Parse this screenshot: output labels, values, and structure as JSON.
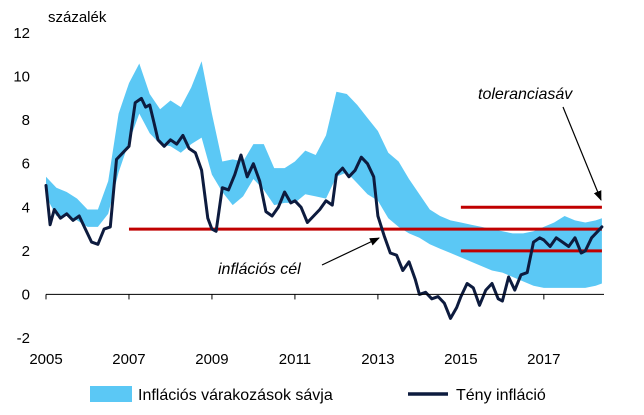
{
  "chart_data": {
    "type": "line",
    "ylabel": "százalék",
    "xlim": [
      2005,
      2018.45
    ],
    "ylim": [
      -2,
      12
    ],
    "x_ticks": [
      2005,
      2007,
      2009,
      2011,
      2013,
      2015,
      2017
    ],
    "x_tick_labels": [
      "2005",
      "2007",
      "2009",
      "2011",
      "2013",
      "2015",
      "2017"
    ],
    "y_ticks": [
      -2,
      0,
      2,
      4,
      6,
      8,
      10,
      12
    ],
    "y_tick_labels": [
      "-2",
      "0",
      "2",
      "4",
      "6",
      "8",
      "10",
      "12"
    ],
    "grid": false,
    "legend_position": "bottom",
    "colors": {
      "band": "#5BC8F5",
      "actual": "#0D1B3E",
      "target": "#C00000",
      "tolerance": "#C00000"
    },
    "series": [
      {
        "name": "Inflációs várakozások sávja",
        "type": "area-band",
        "x": [
          2005.0,
          2005.25,
          2005.5,
          2005.75,
          2006.0,
          2006.25,
          2006.5,
          2006.75,
          2007.0,
          2007.25,
          2007.5,
          2007.75,
          2008.0,
          2008.25,
          2008.5,
          2008.75,
          2009.0,
          2009.25,
          2009.5,
          2009.75,
          2010.0,
          2010.25,
          2010.5,
          2010.75,
          2011.0,
          2011.25,
          2011.5,
          2011.75,
          2012.0,
          2012.25,
          2012.5,
          2012.75,
          2013.0,
          2013.25,
          2013.5,
          2013.75,
          2014.0,
          2014.25,
          2014.5,
          2014.75,
          2015.0,
          2015.25,
          2015.5,
          2015.75,
          2016.0,
          2016.25,
          2016.5,
          2016.75,
          2017.0,
          2017.25,
          2017.5,
          2017.75,
          2018.0,
          2018.25,
          2018.4
        ],
        "lower": [
          4.5,
          3.6,
          3.6,
          3.4,
          3.1,
          3.1,
          3.7,
          5.6,
          7.0,
          8.3,
          7.4,
          6.9,
          6.8,
          6.5,
          6.9,
          7.2,
          5.5,
          4.7,
          4.1,
          4.5,
          5.3,
          4.8,
          4.1,
          4.2,
          4.2,
          4.6,
          4.5,
          4.4,
          5.4,
          5.6,
          5.1,
          4.6,
          4.3,
          3.5,
          3.1,
          2.8,
          2.6,
          2.3,
          2.1,
          1.9,
          1.7,
          1.5,
          1.3,
          1.1,
          1.0,
          0.8,
          0.6,
          0.4,
          0.3,
          0.3,
          0.3,
          0.3,
          0.3,
          0.4,
          0.5
        ],
        "upper": [
          5.4,
          4.9,
          4.7,
          4.4,
          3.9,
          3.9,
          5.2,
          8.3,
          9.7,
          10.6,
          9.2,
          8.5,
          8.9,
          8.6,
          9.5,
          10.7,
          8.3,
          6.1,
          6.2,
          6.1,
          6.9,
          6.9,
          5.8,
          5.8,
          6.1,
          6.6,
          6.4,
          7.3,
          9.3,
          9.2,
          8.7,
          8.1,
          7.5,
          6.5,
          6.1,
          5.3,
          4.6,
          3.9,
          3.6,
          3.4,
          3.3,
          3.2,
          3.1,
          3.0,
          2.9,
          2.8,
          2.8,
          2.9,
          3.1,
          3.3,
          3.6,
          3.4,
          3.3,
          3.4,
          3.5
        ]
      },
      {
        "name": "Tény infláció",
        "type": "line",
        "x": [
          2005.0,
          2005.1,
          2005.2,
          2005.35,
          2005.5,
          2005.65,
          2005.8,
          2005.95,
          2006.1,
          2006.25,
          2006.4,
          2006.55,
          2006.7,
          2006.85,
          2007.0,
          2007.15,
          2007.3,
          2007.4,
          2007.5,
          2007.6,
          2007.7,
          2007.85,
          2008.0,
          2008.15,
          2008.3,
          2008.45,
          2008.6,
          2008.75,
          2008.9,
          2009.0,
          2009.1,
          2009.25,
          2009.4,
          2009.55,
          2009.7,
          2009.85,
          2010.0,
          2010.15,
          2010.3,
          2010.45,
          2010.6,
          2010.75,
          2010.9,
          2011.0,
          2011.15,
          2011.3,
          2011.45,
          2011.6,
          2011.75,
          2011.9,
          2012.0,
          2012.15,
          2012.3,
          2012.45,
          2012.6,
          2012.75,
          2012.9,
          2013.0,
          2013.15,
          2013.3,
          2013.45,
          2013.6,
          2013.75,
          2013.9,
          2014.0,
          2014.15,
          2014.3,
          2014.45,
          2014.6,
          2014.75,
          2014.9,
          2015.0,
          2015.15,
          2015.3,
          2015.45,
          2015.6,
          2015.75,
          2015.9,
          2016.0,
          2016.15,
          2016.3,
          2016.45,
          2016.6,
          2016.75,
          2016.9,
          2017.0,
          2017.15,
          2017.3,
          2017.45,
          2017.6,
          2017.75,
          2017.9,
          2018.0,
          2018.15,
          2018.3,
          2018.4
        ],
        "y": [
          5.0,
          3.2,
          3.9,
          3.5,
          3.7,
          3.4,
          3.6,
          3.0,
          2.4,
          2.3,
          3.0,
          3.1,
          6.2,
          6.5,
          6.8,
          8.8,
          9.0,
          8.6,
          8.7,
          7.9,
          7.1,
          6.8,
          7.1,
          6.9,
          7.3,
          6.7,
          6.5,
          5.7,
          3.5,
          3.0,
          2.9,
          4.9,
          4.8,
          5.5,
          6.4,
          5.4,
          6.0,
          5.2,
          3.8,
          3.6,
          4.0,
          4.7,
          4.2,
          4.3,
          4.0,
          3.3,
          3.6,
          3.9,
          4.3,
          4.1,
          5.5,
          5.8,
          5.4,
          5.7,
          6.3,
          6.0,
          5.4,
          3.6,
          2.7,
          1.9,
          1.8,
          1.1,
          1.5,
          0.7,
          0.0,
          0.1,
          -0.2,
          -0.1,
          -0.4,
          -1.1,
          -0.6,
          -0.1,
          0.5,
          0.3,
          -0.5,
          0.2,
          0.5,
          -0.2,
          -0.3,
          0.8,
          0.2,
          0.9,
          1.0,
          2.4,
          2.6,
          2.5,
          2.2,
          2.6,
          2.4,
          2.2,
          2.6,
          1.9,
          2.0,
          2.6,
          2.9,
          3.1
        ]
      }
    ],
    "reference_lines": [
      {
        "label": "inflációs cél",
        "y": 3,
        "x_start": 2007.0,
        "x_end": 2018.4
      },
      {
        "label": "",
        "y": 4,
        "x_start": 2015.0,
        "x_end": 2018.4
      },
      {
        "label": "",
        "y": 2,
        "x_start": 2015.0,
        "x_end": 2018.4
      }
    ],
    "annotations": [
      {
        "text": "toleranciasáv"
      },
      {
        "text": "inflációs cél"
      }
    ]
  }
}
